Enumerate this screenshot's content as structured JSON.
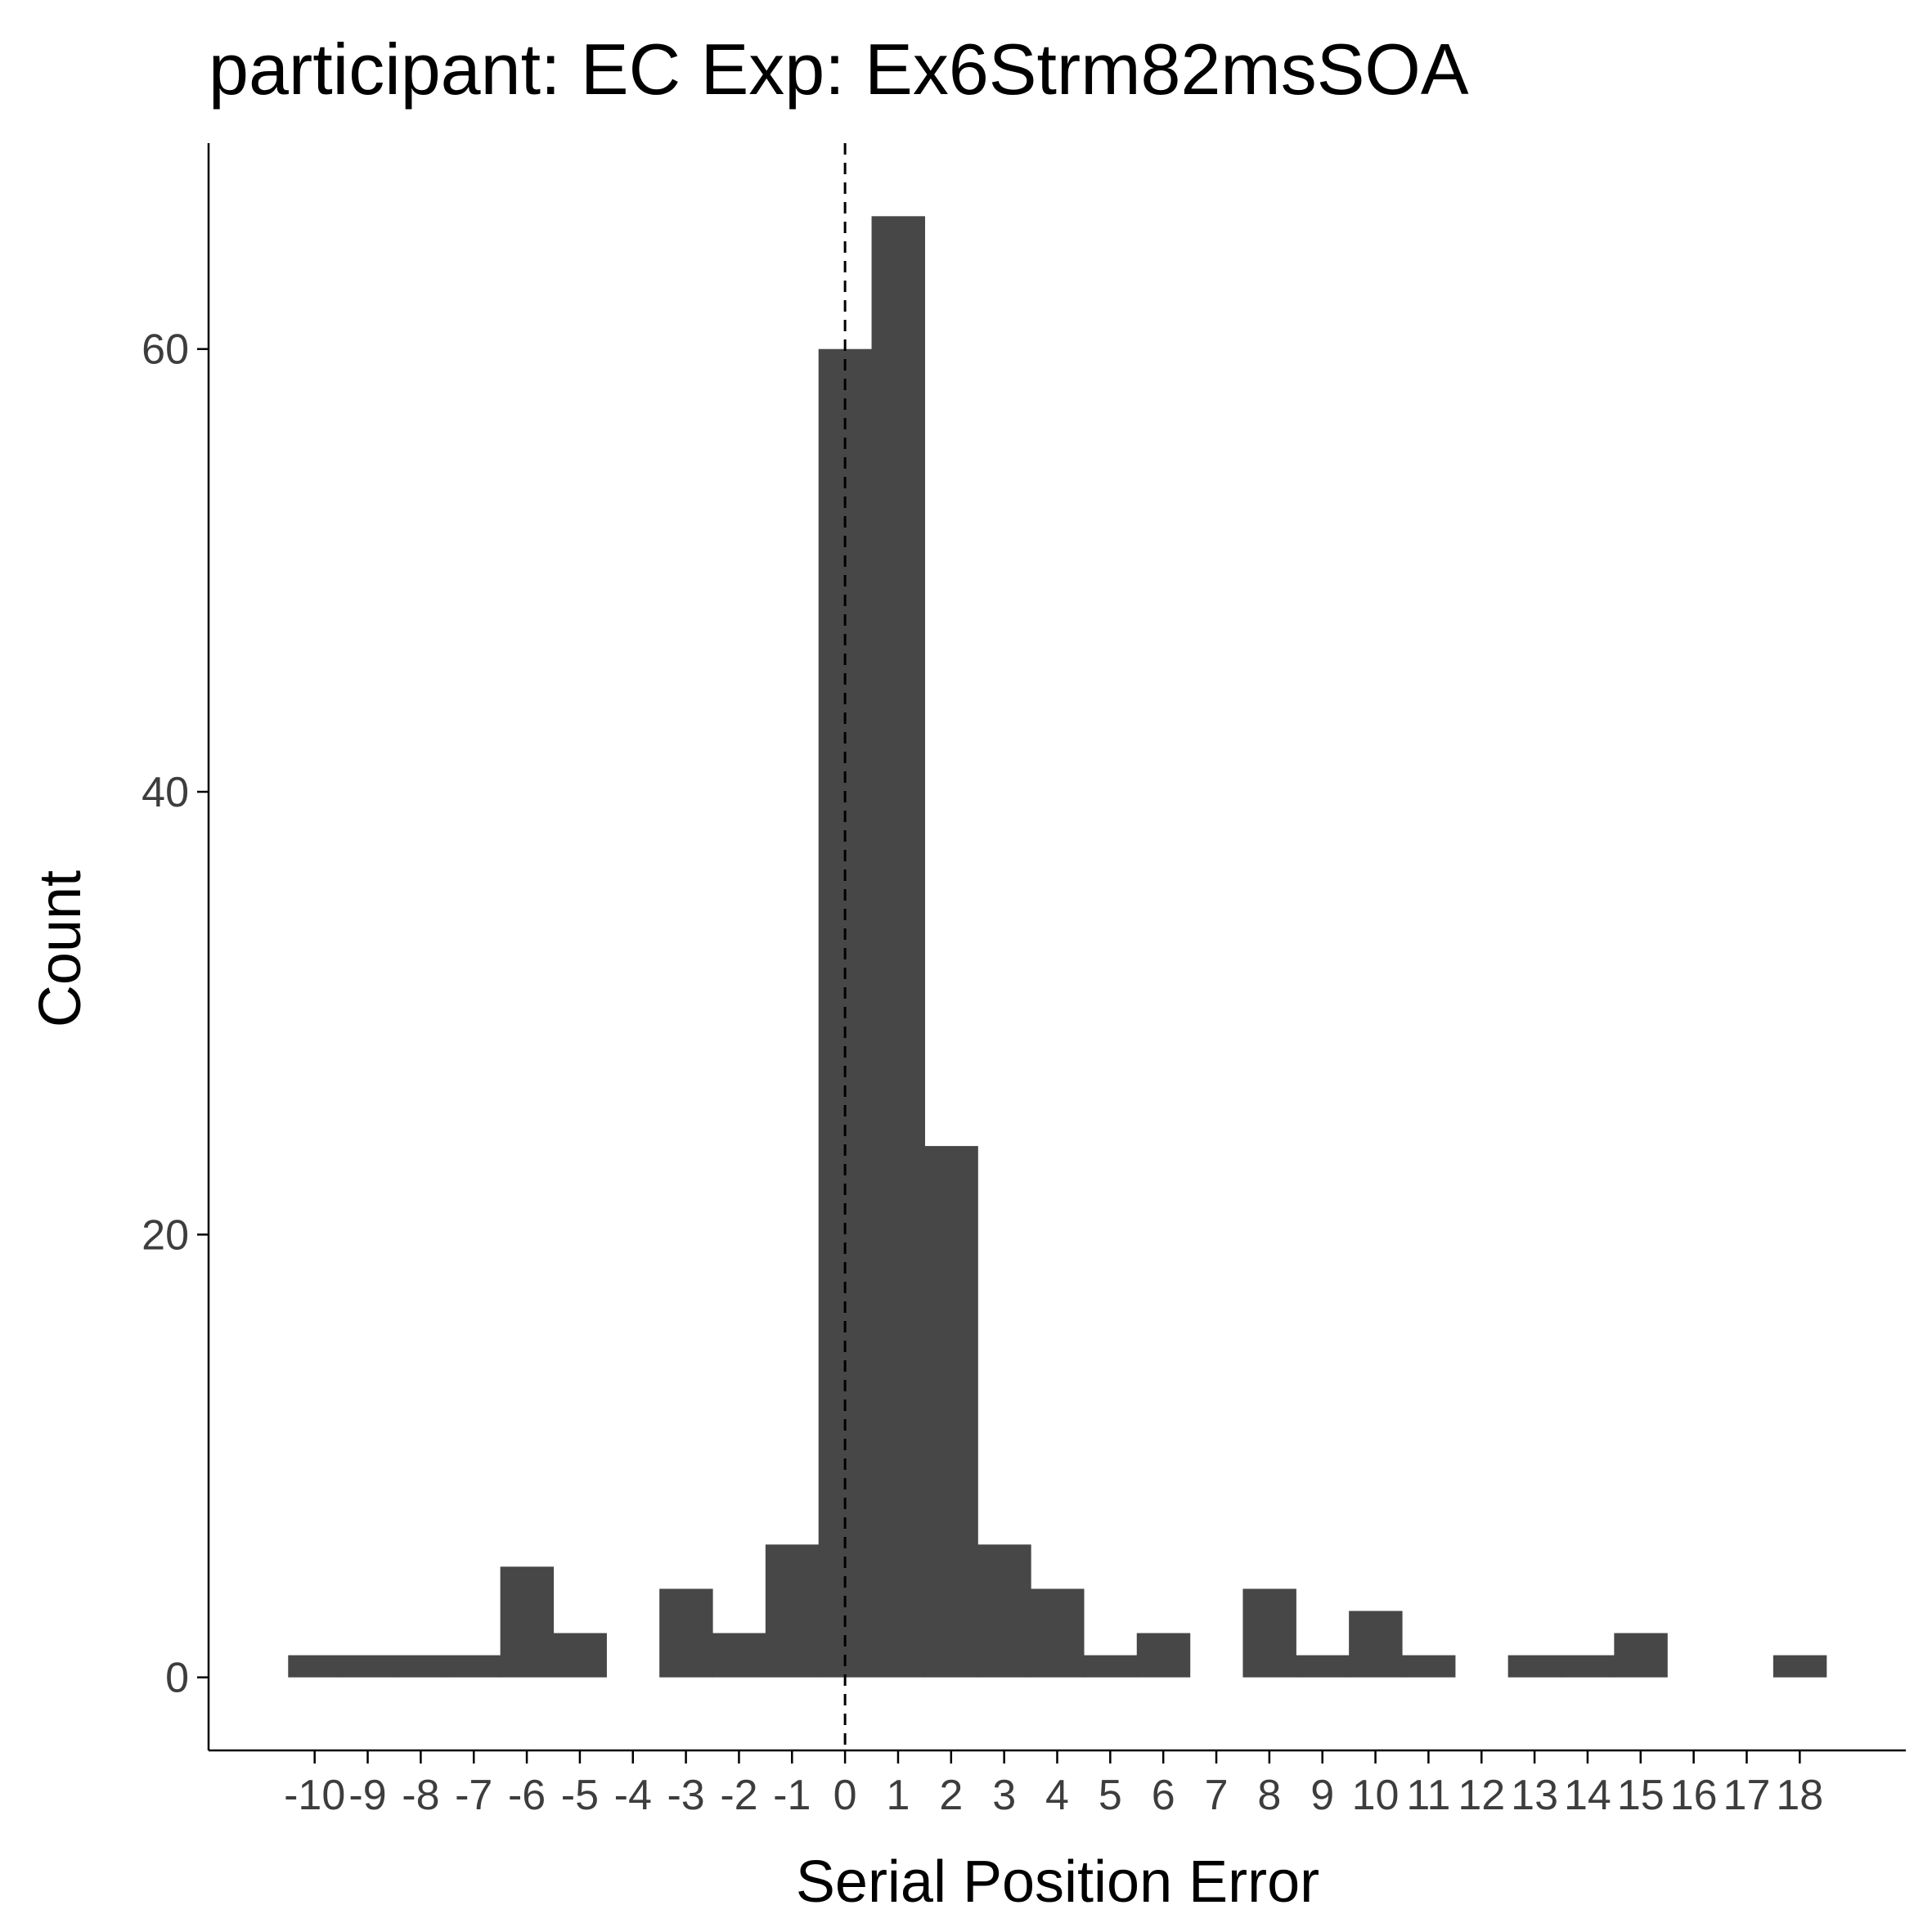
{
  "chart_data": {
    "type": "bar",
    "title": "participant: EC Exp: Ex6Strm82msSOA",
    "xlabel": "Serial Position Error",
    "ylabel": "Count",
    "x": [
      -10,
      -9,
      -8,
      -7,
      -6,
      -5,
      -4,
      -3,
      -2,
      -1,
      0,
      1,
      2,
      3,
      4,
      5,
      6,
      7,
      8,
      9,
      10,
      11,
      12,
      13,
      14,
      15,
      16,
      17,
      18
    ],
    "values": [
      1,
      1,
      1,
      1,
      5,
      2,
      0,
      4,
      2,
      6,
      60,
      66,
      24,
      6,
      4,
      1,
      2,
      0,
      4,
      1,
      3,
      1,
      0,
      1,
      1,
      2,
      0,
      0,
      1
    ],
    "x_tick_labels": [
      "-10",
      "-9",
      "-8",
      "-7",
      "-6",
      "-5",
      "-4",
      "-3",
      "-2",
      "-1",
      "0",
      "1",
      "2",
      "3",
      "4",
      "5",
      "6",
      "7",
      "8",
      "9",
      "10",
      "11",
      "12",
      "13",
      "14",
      "15",
      "16",
      "17",
      "18"
    ],
    "y_ticks": [
      0,
      20,
      40,
      60
    ],
    "y_tick_labels": [
      "0",
      "20",
      "40",
      "60"
    ],
    "xlim": [
      -12,
      20
    ],
    "ylim": [
      -3.3,
      69.3
    ],
    "reference_line": {
      "x": 0,
      "style": "dashed"
    },
    "bar_color": "#474747",
    "grid": false,
    "legend": "none"
  }
}
